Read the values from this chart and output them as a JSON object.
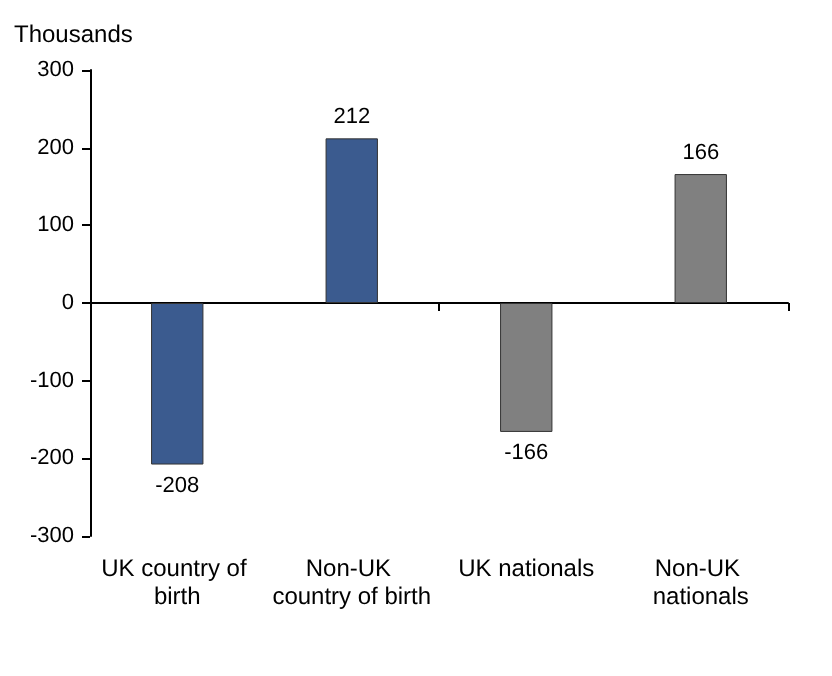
{
  "chart_data": {
    "type": "bar",
    "ylabel": "Thousands",
    "categories": [
      "UK country of birth",
      "Non-UK country of birth",
      "UK nationals",
      "Non-UK nationals"
    ],
    "values": [
      -208,
      212,
      -166,
      166
    ],
    "colors": [
      "#3b5b8f",
      "#3b5b8f",
      "#808080",
      "#808080"
    ],
    "ylim": [
      -300,
      300
    ],
    "yticks": [
      -300,
      -200,
      -100,
      0,
      100,
      200,
      300
    ],
    "data_labels": true
  }
}
